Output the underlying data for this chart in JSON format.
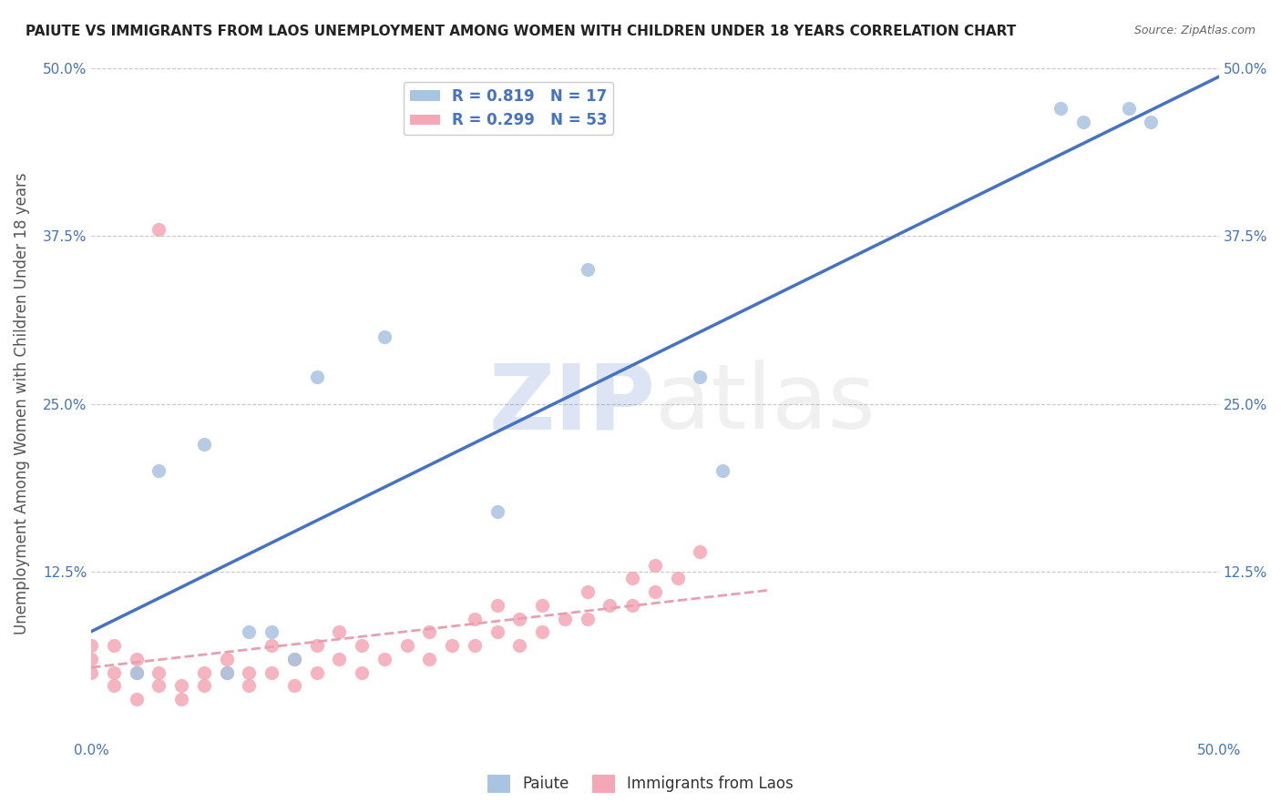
{
  "title": "PAIUTE VS IMMIGRANTS FROM LAOS UNEMPLOYMENT AMONG WOMEN WITH CHILDREN UNDER 18 YEARS CORRELATION CHART",
  "source": "Source: ZipAtlas.com",
  "ylabel": "Unemployment Among Women with Children Under 18 years",
  "xlim": [
    0,
    0.5
  ],
  "ylim": [
    0,
    0.5
  ],
  "xticks": [
    0.0,
    0.1,
    0.2,
    0.3,
    0.4,
    0.5
  ],
  "yticks": [
    0.0,
    0.125,
    0.25,
    0.375,
    0.5
  ],
  "ytick_labels": [
    "",
    "12.5%",
    "25.0%",
    "37.5%",
    "50.0%"
  ],
  "xtick_labels": [
    "0.0%",
    "",
    "",
    "",
    "",
    "50.0%"
  ],
  "paiute_R": 0.819,
  "paiute_N": 17,
  "laos_R": 0.299,
  "laos_N": 53,
  "paiute_color": "#a8c4e0",
  "laos_color": "#f4a7b5",
  "paiute_line_color": "#4472c4",
  "laos_line_color": "#e8a0b0",
  "label_color": "#4472c4",
  "background_color": "#ffffff",
  "grid_color": "#c8c8c8",
  "watermark_zip_color": "#4472c4",
  "watermark_atlas_color": "#b0b0b0",
  "paiute_x": [
    0.02,
    0.03,
    0.05,
    0.06,
    0.07,
    0.08,
    0.09,
    0.1,
    0.13,
    0.18,
    0.22,
    0.27,
    0.28,
    0.43,
    0.44,
    0.46,
    0.47
  ],
  "paiute_y": [
    0.05,
    0.2,
    0.22,
    0.05,
    0.08,
    0.08,
    0.06,
    0.27,
    0.3,
    0.17,
    0.35,
    0.27,
    0.2,
    0.47,
    0.46,
    0.47,
    0.46
  ],
  "laos_x": [
    0.0,
    0.0,
    0.0,
    0.01,
    0.01,
    0.01,
    0.02,
    0.02,
    0.02,
    0.03,
    0.03,
    0.03,
    0.04,
    0.04,
    0.05,
    0.05,
    0.06,
    0.06,
    0.07,
    0.07,
    0.08,
    0.08,
    0.09,
    0.09,
    0.1,
    0.1,
    0.11,
    0.11,
    0.12,
    0.12,
    0.13,
    0.14,
    0.15,
    0.15,
    0.16,
    0.17,
    0.17,
    0.18,
    0.18,
    0.19,
    0.19,
    0.2,
    0.2,
    0.21,
    0.22,
    0.22,
    0.23,
    0.24,
    0.24,
    0.25,
    0.25,
    0.26,
    0.27
  ],
  "laos_y": [
    0.05,
    0.06,
    0.07,
    0.04,
    0.05,
    0.07,
    0.03,
    0.05,
    0.06,
    0.04,
    0.05,
    0.38,
    0.03,
    0.04,
    0.04,
    0.05,
    0.05,
    0.06,
    0.04,
    0.05,
    0.05,
    0.07,
    0.04,
    0.06,
    0.05,
    0.07,
    0.06,
    0.08,
    0.05,
    0.07,
    0.06,
    0.07,
    0.06,
    0.08,
    0.07,
    0.07,
    0.09,
    0.08,
    0.1,
    0.07,
    0.09,
    0.08,
    0.1,
    0.09,
    0.09,
    0.11,
    0.1,
    0.1,
    0.12,
    0.11,
    0.13,
    0.12,
    0.14
  ]
}
